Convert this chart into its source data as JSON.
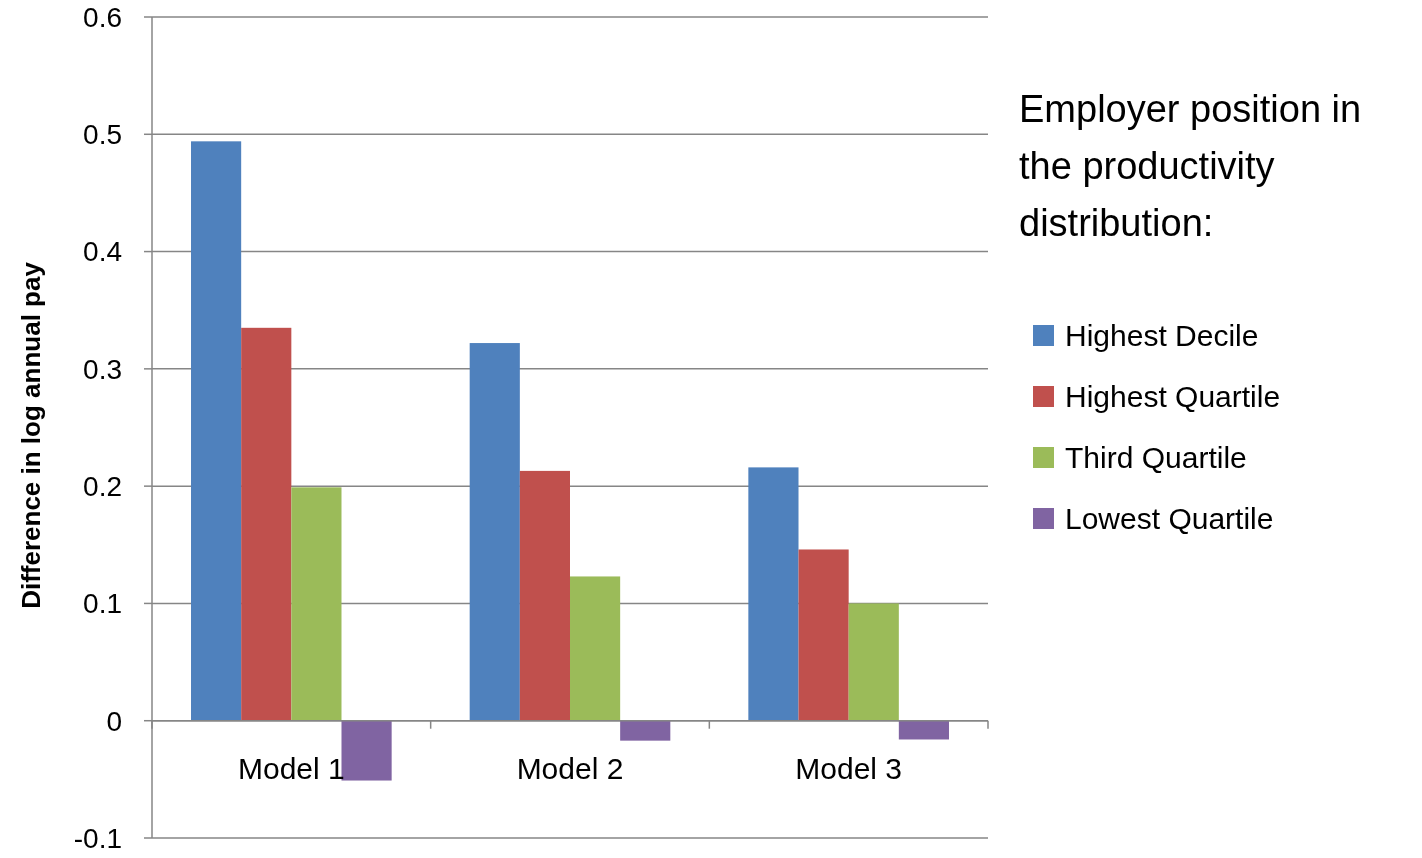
{
  "chart_data": {
    "type": "bar",
    "ylabel": "Difference in log annual pay",
    "legend_title": "Employer position in the productivity distribution:",
    "categories": [
      "Model 1",
      "Model 2",
      "Model 3"
    ],
    "series": [
      {
        "name": "Highest Decile",
        "color": "#4f81bd",
        "values": [
          0.494,
          0.322,
          0.216
        ]
      },
      {
        "name": "Highest Quartile",
        "color": "#c0504d",
        "values": [
          0.335,
          0.213,
          0.146
        ]
      },
      {
        "name": "Third Quartile",
        "color": "#9bbb59",
        "values": [
          0.199,
          0.123,
          0.1
        ]
      },
      {
        "name": "Lowest Quartile",
        "color": "#8064a2",
        "values": [
          -0.051,
          -0.017,
          -0.016
        ]
      }
    ],
    "ylim": [
      -0.1,
      0.6
    ],
    "yticks": [
      -0.1,
      0,
      0.1,
      0.2,
      0.3,
      0.4,
      0.5,
      0.6
    ],
    "grid": "y",
    "legend": "right"
  }
}
